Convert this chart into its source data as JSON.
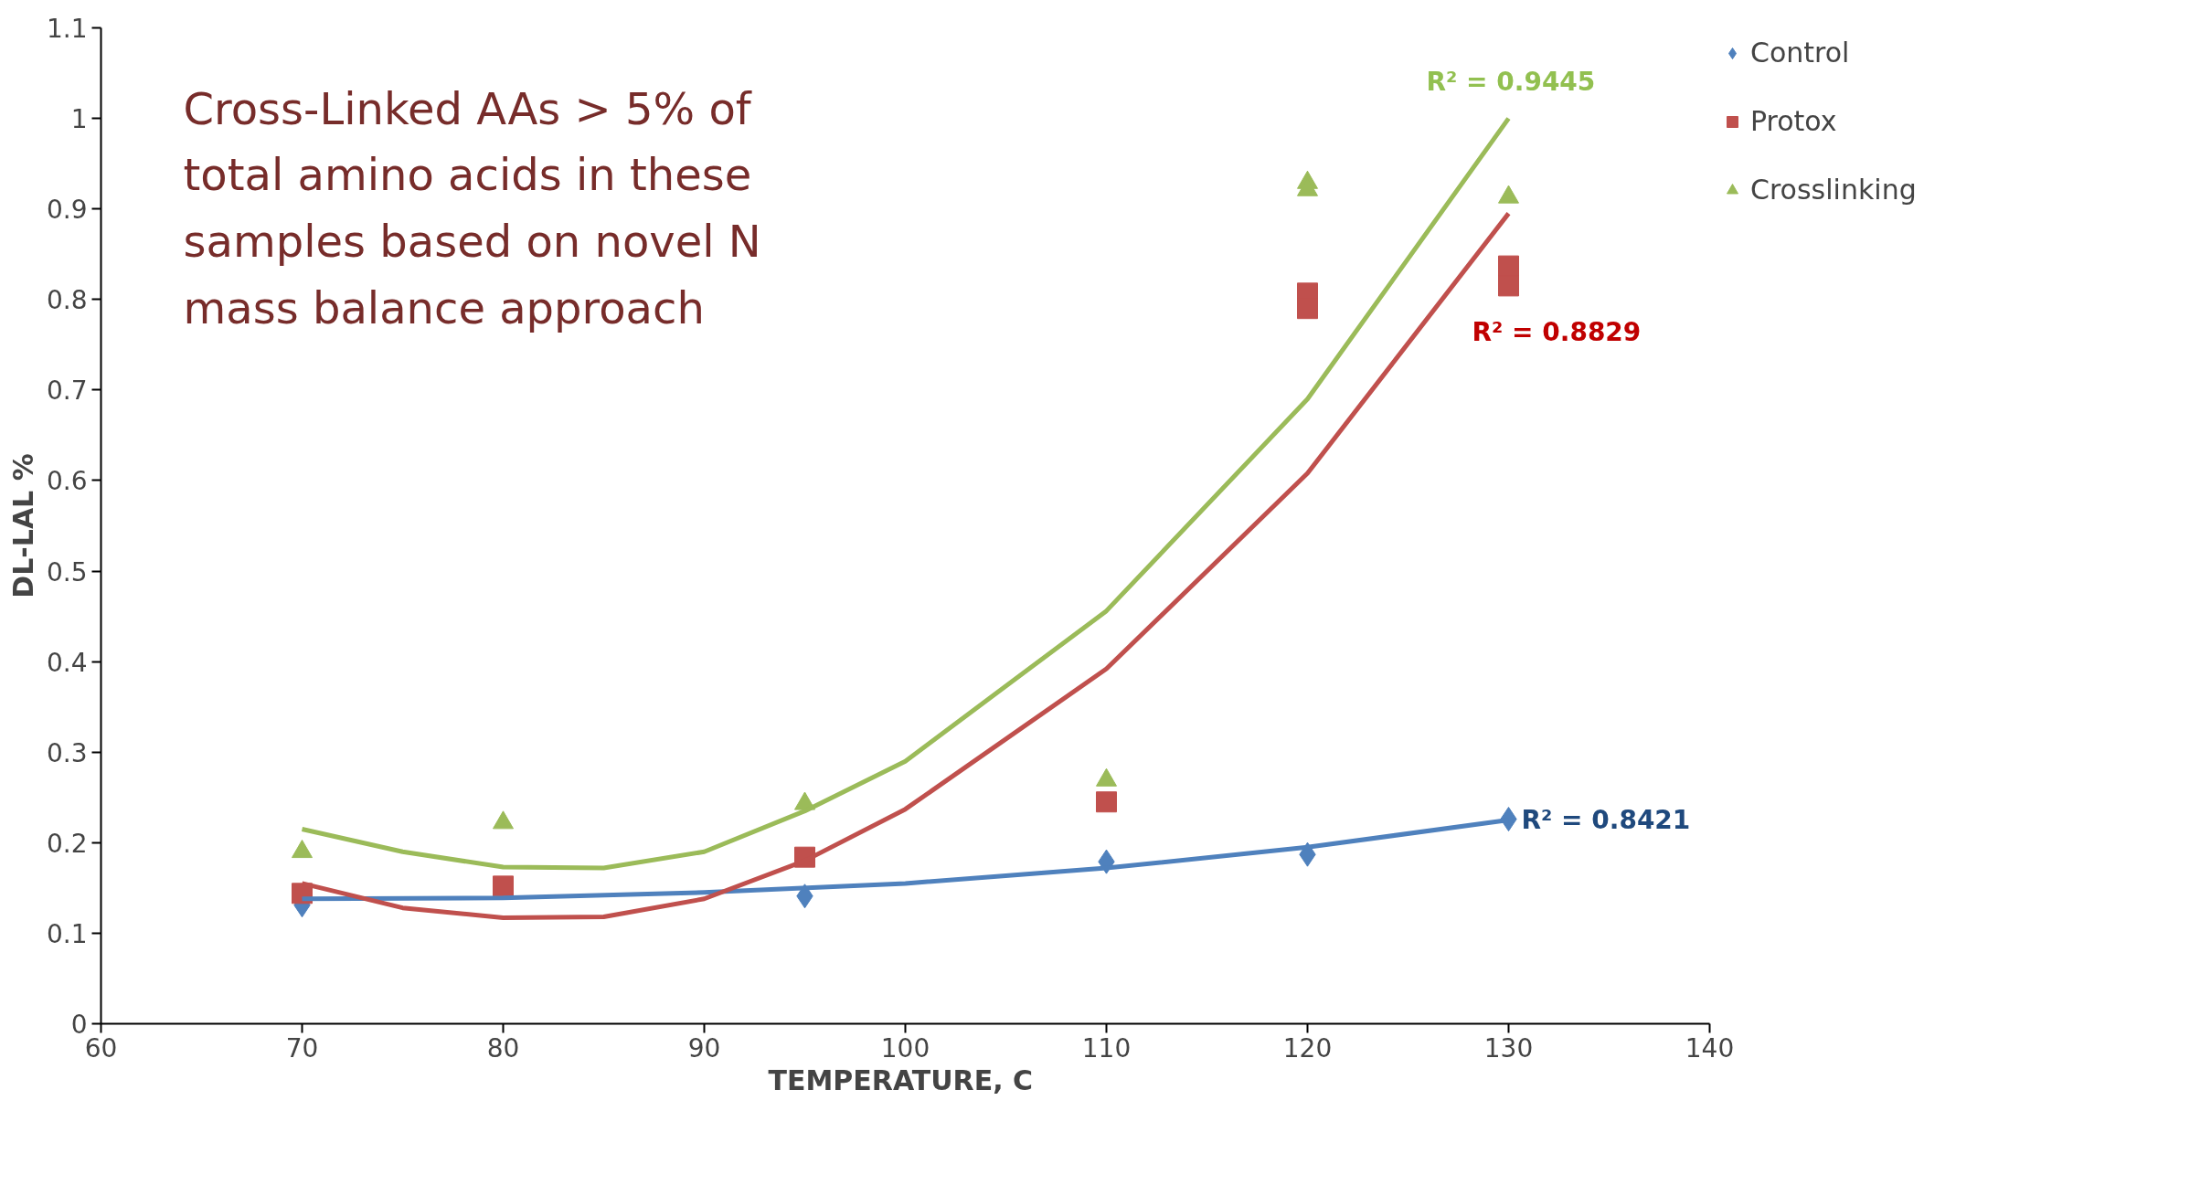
{
  "chart_data": {
    "type": "scatter",
    "xlabel": "TEMPERATURE,  C",
    "ylabel": "DL-LAL %",
    "xlim": [
      60,
      140
    ],
    "xticks": [
      60,
      70,
      80,
      90,
      100,
      110,
      120,
      130,
      140
    ],
    "ylim": [
      0,
      1.1
    ],
    "yticks": [
      0,
      0.1,
      0.2,
      0.3,
      0.4,
      0.5,
      0.6,
      0.7,
      0.8,
      0.9,
      1,
      1.1
    ],
    "grid": false,
    "legend": "right",
    "series": [
      {
        "name": "Control",
        "color": "#4f81bd",
        "marker": "diamond",
        "x": [
          70,
          95,
          110,
          120,
          130
        ],
        "values": [
          0.131,
          0.141,
          0.179,
          0.187,
          0.226
        ]
      },
      {
        "name": "Protox",
        "color": "#c0504d",
        "marker": "square",
        "x": [
          70,
          80,
          95,
          110,
          120,
          120,
          130,
          130
        ],
        "values": [
          0.144,
          0.152,
          0.184,
          0.245,
          0.807,
          0.79,
          0.837,
          0.815
        ]
      },
      {
        "name": "Crosslinking",
        "color": "#9bbb59",
        "marker": "triangle",
        "x": [
          70,
          80,
          95,
          110,
          120,
          120,
          130
        ],
        "values": [
          0.19,
          0.222,
          0.243,
          0.269,
          0.929,
          0.921,
          0.913
        ]
      },
      {
        "type": "line",
        "color": "#4f81bd",
        "x": [
          70,
          80,
          90,
          100,
          110,
          120,
          130
        ],
        "values": [
          0.138,
          0.139,
          0.145,
          0.155,
          0.172,
          0.195,
          0.225
        ]
      },
      {
        "type": "line",
        "color": "#c0504d",
        "x": [
          70,
          75,
          80,
          85,
          90,
          95,
          100,
          110,
          120,
          130
        ],
        "values": [
          0.155,
          0.128,
          0.117,
          0.118,
          0.138,
          0.18,
          0.237,
          0.392,
          0.608,
          0.895
        ]
      },
      {
        "type": "line",
        "color": "#9bbb59",
        "x": [
          70,
          75,
          80,
          85,
          90,
          95,
          100,
          110,
          120,
          130
        ],
        "values": [
          0.215,
          0.19,
          0.173,
          0.172,
          0.19,
          0.235,
          0.29,
          0.456,
          0.69,
          1.0
        ]
      }
    ],
    "annotations": [
      "Cross-Linked AAs > 5% of\ntotal amino acids in these\nsamples based on novel N\nmass balance approach",
      "R² = 0.8421",
      "R² = 0.8829",
      "R² = 0.9445"
    ]
  }
}
